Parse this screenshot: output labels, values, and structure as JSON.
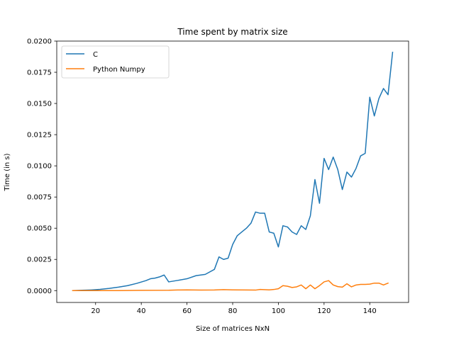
{
  "chart_data": {
    "type": "line",
    "title": "Time spent by matrix size",
    "xlabel": "Size of matrices NxN",
    "ylabel": "Time (in s)",
    "xlim": [
      3,
      157
    ],
    "ylim": [
      -0.00095,
      0.02
    ],
    "x_ticks": [
      20,
      40,
      60,
      80,
      100,
      120,
      140
    ],
    "x_tick_labels": [
      "20",
      "40",
      "60",
      "80",
      "100",
      "120",
      "140"
    ],
    "y_ticks": [
      0.0,
      0.0025,
      0.005,
      0.0075,
      0.01,
      0.0125,
      0.015,
      0.0175,
      0.02
    ],
    "y_tick_labels": [
      "0.0000",
      "0.0025",
      "0.0050",
      "0.0075",
      "0.0100",
      "0.0125",
      "0.0150",
      "0.0175",
      "0.0200"
    ],
    "grid": false,
    "legend_position": "top-left",
    "series": [
      {
        "name": "C",
        "color": "#1f77b4",
        "points": [
          [
            10,
            0.0
          ],
          [
            14,
            3e-05
          ],
          [
            18,
            5e-05
          ],
          [
            22,
            0.0001
          ],
          [
            26,
            0.00018
          ],
          [
            30,
            0.00028
          ],
          [
            34,
            0.0004
          ],
          [
            38,
            0.00058
          ],
          [
            42,
            0.0008
          ],
          [
            44,
            0.00095
          ],
          [
            46,
            0.001
          ],
          [
            48,
            0.0011
          ],
          [
            50,
            0.00125
          ],
          [
            52,
            0.0007
          ],
          [
            56,
            0.00082
          ],
          [
            60,
            0.00095
          ],
          [
            64,
            0.0012
          ],
          [
            68,
            0.0013
          ],
          [
            72,
            0.0017
          ],
          [
            74,
            0.0027
          ],
          [
            76,
            0.0025
          ],
          [
            78,
            0.0026
          ],
          [
            80,
            0.0037
          ],
          [
            82,
            0.0044
          ],
          [
            84,
            0.0047
          ],
          [
            86,
            0.005
          ],
          [
            88,
            0.0054
          ],
          [
            90,
            0.0063
          ],
          [
            92,
            0.0062
          ],
          [
            94,
            0.0062
          ],
          [
            96,
            0.0047
          ],
          [
            98,
            0.0046
          ],
          [
            100,
            0.0035
          ],
          [
            102,
            0.0052
          ],
          [
            104,
            0.0051
          ],
          [
            106,
            0.0047
          ],
          [
            108,
            0.0045
          ],
          [
            110,
            0.0052
          ],
          [
            112,
            0.0049
          ],
          [
            114,
            0.006
          ],
          [
            116,
            0.0089
          ],
          [
            118,
            0.007
          ],
          [
            120,
            0.0106
          ],
          [
            122,
            0.0097
          ],
          [
            124,
            0.0107
          ],
          [
            126,
            0.0097
          ],
          [
            128,
            0.0081
          ],
          [
            130,
            0.0095
          ],
          [
            132,
            0.0091
          ],
          [
            134,
            0.0098
          ],
          [
            136,
            0.0108
          ],
          [
            138,
            0.011
          ],
          [
            140,
            0.0155
          ],
          [
            142,
            0.014
          ],
          [
            144,
            0.0154
          ],
          [
            146,
            0.0162
          ],
          [
            148,
            0.0157
          ],
          [
            150,
            0.0191
          ]
        ]
      },
      {
        "name": "Python Numpy",
        "color": "#ff7f0e",
        "points": [
          [
            10,
            0.0
          ],
          [
            20,
            0.0
          ],
          [
            30,
            0.0
          ],
          [
            40,
            2e-05
          ],
          [
            52,
            3e-05
          ],
          [
            56,
            5e-05
          ],
          [
            60,
            6e-05
          ],
          [
            66,
            4e-05
          ],
          [
            72,
            5e-05
          ],
          [
            76,
            8e-05
          ],
          [
            80,
            6e-05
          ],
          [
            86,
            5e-05
          ],
          [
            90,
            4e-05
          ],
          [
            92,
            9e-05
          ],
          [
            96,
            6e-05
          ],
          [
            98,
            9e-05
          ],
          [
            100,
            0.00015
          ],
          [
            102,
            0.0004
          ],
          [
            104,
            0.00035
          ],
          [
            106,
            0.00025
          ],
          [
            108,
            0.0003
          ],
          [
            110,
            0.00045
          ],
          [
            112,
            0.00015
          ],
          [
            114,
            0.00045
          ],
          [
            116,
            0.00015
          ],
          [
            118,
            0.0004
          ],
          [
            120,
            0.0007
          ],
          [
            122,
            0.0008
          ],
          [
            124,
            0.00045
          ],
          [
            126,
            0.00032
          ],
          [
            128,
            0.00028
          ],
          [
            130,
            0.00055
          ],
          [
            132,
            0.0003
          ],
          [
            134,
            0.00045
          ],
          [
            136,
            0.0005
          ],
          [
            138,
            0.0005
          ],
          [
            140,
            0.00052
          ],
          [
            142,
            0.0006
          ],
          [
            144,
            0.0006
          ],
          [
            146,
            0.00045
          ],
          [
            148,
            0.0006
          ]
        ]
      }
    ]
  }
}
